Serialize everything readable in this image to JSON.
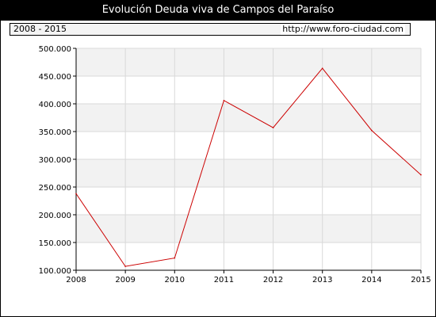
{
  "header": {
    "title": "Evolución Deuda viva de Campos del Paraíso",
    "period": "2008 - 2015",
    "url": "http://www.foro-ciudad.com"
  },
  "chart_data": {
    "type": "line",
    "title": "Evolución Deuda viva de Campos del Paraíso",
    "xlabel": "",
    "ylabel": "",
    "x": [
      "2008",
      "2009",
      "2010",
      "2011",
      "2012",
      "2013",
      "2014",
      "2015"
    ],
    "series": [
      {
        "values": [
          238000,
          107000,
          122000,
          406000,
          357000,
          464000,
          352000,
          272000
        ]
      }
    ],
    "ylim": [
      100000,
      500000
    ],
    "yticks": [
      100000,
      150000,
      200000,
      250000,
      300000,
      350000,
      400000,
      450000,
      500000
    ],
    "ytick_labels": [
      "100.000",
      "150.000",
      "200.000",
      "250.000",
      "300.000",
      "350.000",
      "400.000",
      "450.000",
      "500.000"
    ],
    "grid": true,
    "line_color": "#cc0000"
  }
}
